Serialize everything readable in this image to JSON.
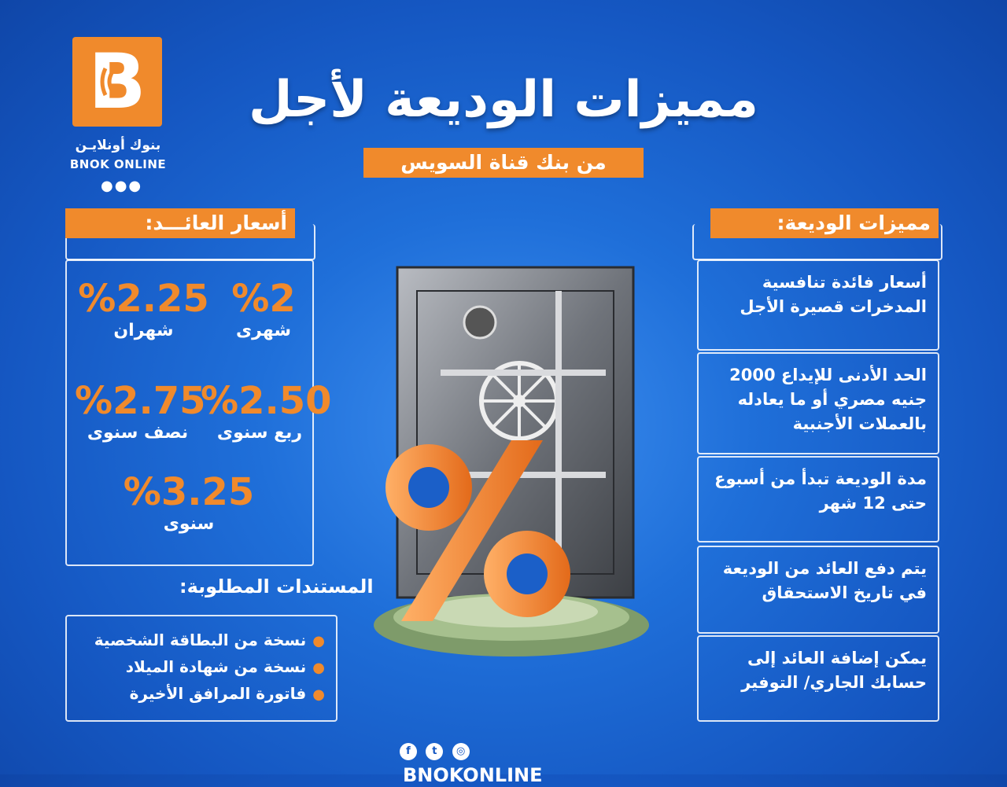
{
  "brand": {
    "logo_letter": "B",
    "name_ar": "بنوك أونلايـن",
    "name_en": "BNOK ONLINE",
    "dots": "●●●",
    "accent_color": "#f08a2c",
    "background_color": "#1f6fd9"
  },
  "header": {
    "title": "مميزات الوديعة لأجل",
    "subtitle": "من بنك قناة السويس"
  },
  "features": {
    "label": "مميزات الوديعة:",
    "items": [
      "أسعار فائدة تنافسية المدخرات قصيرة الأجل",
      "الحد الأدنى للإيداع 2000 جنيه مصري أو ما يعادله بالعملات الأجنبية",
      "مدة الوديعة تبدأ من أسبوع حتى 12 شهر",
      "يتم دفع العائد من الوديعة في تاريخ الاستحقاق",
      "يمكن إضافة العائد إلى حسابك الجاري/ التوفير"
    ]
  },
  "rates": {
    "label": "أسعار العائـــد:",
    "items": [
      {
        "value": "%2",
        "period": "شهرى"
      },
      {
        "value": "%2.25",
        "period": "شهران"
      },
      {
        "value": "%2.50",
        "period": "ربع سنوى"
      },
      {
        "value": "%2.75",
        "period": "نصف سنوى"
      },
      {
        "value": "%3.25",
        "period": "سنوى"
      }
    ]
  },
  "documents": {
    "label": "المستندات المطلوبة:",
    "items": [
      "نسخة من البطاقة الشخصية",
      "نسخة من شهادة الميلاد",
      "فاتورة المرافق الأخيرة"
    ]
  },
  "footer": {
    "handle": "BNOKONLINE",
    "icons": [
      "facebook-icon",
      "twitter-icon",
      "instagram-icon"
    ]
  }
}
